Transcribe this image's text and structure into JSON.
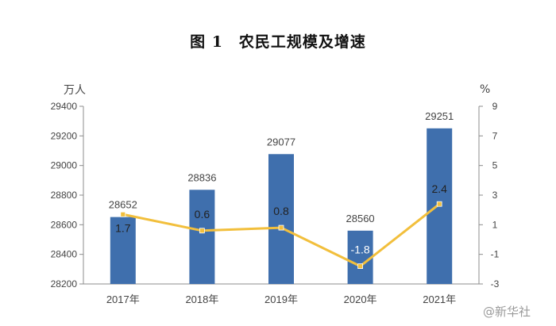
{
  "chart_data": {
    "type": "bar",
    "title": "图 1　农民工规模及增速",
    "left_axis_unit": "万人",
    "right_axis_unit": "%",
    "categories": [
      "2017年",
      "2018年",
      "2019年",
      "2020年",
      "2021年"
    ],
    "series": [
      {
        "kind": "bar",
        "axis": "left",
        "values": [
          28652,
          28836,
          29077,
          28560,
          29251
        ]
      },
      {
        "kind": "line",
        "axis": "right",
        "values": [
          1.7,
          0.6,
          0.8,
          -1.8,
          2.4
        ]
      }
    ],
    "left_ylim": [
      28200,
      29400
    ],
    "left_ticks": [
      28200,
      28400,
      28600,
      28800,
      29000,
      29200,
      29400
    ],
    "right_ylim": [
      -3,
      9
    ],
    "right_ticks": [
      -3,
      -1,
      1,
      3,
      5,
      7,
      9
    ],
    "bar_labels": [
      "28652",
      "28836",
      "29077",
      "28560",
      "29251"
    ],
    "line_labels": [
      "1.7",
      "0.6",
      "0.8",
      "-1.8",
      "2.4"
    ],
    "colors": {
      "bar": "#3f6fad",
      "line": "#f2bf3c",
      "axis": "#8c8c8c",
      "text": "#444444"
    }
  },
  "watermark": "@新华社"
}
